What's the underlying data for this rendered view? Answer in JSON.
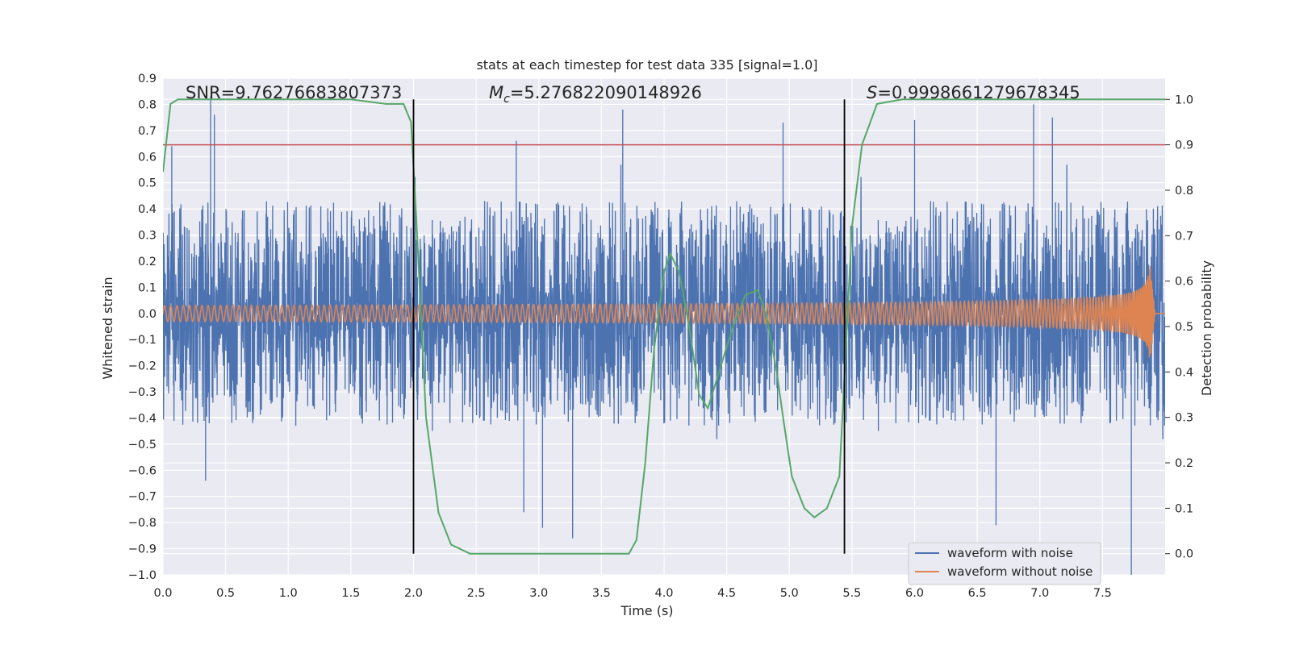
{
  "chart_data": {
    "type": "line",
    "title": "stats at each timestep for test data 335 [signal=1.0]",
    "xlabel": "Time (s)",
    "ylabel": "Whitened strain",
    "y2label": "Detection probability",
    "xlim": [
      0.0,
      8.0
    ],
    "ylim": [
      -1.0,
      0.9
    ],
    "y2lim": [
      -0.0466,
      1.0466
    ],
    "xticks": [
      0.0,
      0.5,
      1.0,
      1.5,
      2.0,
      2.5,
      3.0,
      3.5,
      4.0,
      4.5,
      5.0,
      5.5,
      6.0,
      6.5,
      7.0,
      7.5
    ],
    "xtick_labels": [
      "0.0",
      "0.5",
      "1.0",
      "1.5",
      "2.0",
      "2.5",
      "3.0",
      "3.5",
      "4.0",
      "4.5",
      "5.0",
      "5.5",
      "6.0",
      "6.5",
      "7.0",
      "7.5"
    ],
    "yticks": [
      0.9,
      0.8,
      0.7,
      0.6,
      0.5,
      0.4,
      0.3,
      0.2,
      0.1,
      0.0,
      -0.1,
      -0.2,
      -0.3,
      -0.4,
      -0.5,
      -0.6,
      -0.7,
      -0.8,
      -0.9,
      -1.0
    ],
    "ytick_labels": [
      "0.9",
      "0.8",
      "0.7",
      "0.6",
      "0.5",
      "0.4",
      "0.3",
      "0.2",
      "0.1",
      "0.0",
      "−0.1",
      "−0.2",
      "−0.3",
      "−0.4",
      "−0.5",
      "−0.6",
      "−0.7",
      "−0.8",
      "−0.9",
      "−1.0"
    ],
    "y2ticks": [
      1.0,
      0.9,
      0.8,
      0.7,
      0.6,
      0.5,
      0.4,
      0.3,
      0.2,
      0.1,
      0.0
    ],
    "y2tick_labels": [
      "1.0",
      "0.9",
      "0.8",
      "0.7",
      "0.6",
      "0.5",
      "0.4",
      "0.3",
      "0.2",
      "0.1",
      "0.0"
    ],
    "grid": true,
    "legend_position": "lower-right",
    "series": [
      {
        "name": "waveform with noise",
        "color": "#4c72b0",
        "kind": "noisy strain",
        "envelope_positive_typical": 0.4,
        "envelope_negative_typical": -0.45,
        "peaks": [
          {
            "x": 0.38,
            "y": 0.83
          },
          {
            "x": 0.41,
            "y": 0.76
          },
          {
            "x": 0.07,
            "y": 0.64
          },
          {
            "x": 2.82,
            "y": 0.66
          },
          {
            "x": 3.67,
            "y": 0.78
          },
          {
            "x": 4.95,
            "y": 0.73
          },
          {
            "x": 6.0,
            "y": 0.74
          },
          {
            "x": 6.95,
            "y": 0.8
          },
          {
            "x": 7.1,
            "y": 0.75
          },
          {
            "x": 7.73,
            "y": -1.0
          },
          {
            "x": 3.03,
            "y": -0.82
          },
          {
            "x": 3.27,
            "y": -0.86
          },
          {
            "x": 6.65,
            "y": -0.81
          },
          {
            "x": 2.88,
            "y": -0.76
          },
          {
            "x": 0.34,
            "y": -0.64
          }
        ]
      },
      {
        "name": "waveform without noise",
        "color": "#dd8452",
        "kind": "chirp",
        "amplitude_start": 0.03,
        "amplitude_peak": 0.19,
        "merger_time": 7.88,
        "ringdown_end": 7.92
      },
      {
        "name": "detection probability",
        "color": "#55a868",
        "axis": "right",
        "x": [
          0.0,
          0.06,
          0.12,
          0.3,
          1.5,
          1.78,
          1.92,
          1.98,
          2.02,
          2.1,
          2.2,
          2.3,
          2.45,
          3.0,
          3.5,
          3.65,
          3.72,
          3.78,
          3.85,
          3.92,
          4.0,
          4.05,
          4.12,
          4.2,
          4.28,
          4.35,
          4.45,
          4.55,
          4.65,
          4.75,
          4.82,
          4.9,
          4.95,
          5.02,
          5.12,
          5.2,
          5.3,
          5.4,
          5.5,
          5.58,
          5.7,
          5.9,
          6.5,
          7.2,
          8.0
        ],
        "y": [
          0.84,
          0.99,
          1.0,
          1.0,
          1.0,
          0.99,
          0.99,
          0.95,
          0.75,
          0.3,
          0.09,
          0.02,
          0.0,
          0.0,
          0.0,
          0.0,
          0.0,
          0.03,
          0.2,
          0.45,
          0.62,
          0.66,
          0.62,
          0.5,
          0.35,
          0.32,
          0.41,
          0.5,
          0.57,
          0.58,
          0.52,
          0.4,
          0.3,
          0.17,
          0.1,
          0.08,
          0.1,
          0.17,
          0.72,
          0.9,
          0.99,
          1.0,
          1.0,
          1.0,
          1.0
        ]
      }
    ],
    "threshold_line": {
      "y2": 0.9,
      "color": "#c44e52"
    },
    "vertical_lines": [
      2.0,
      5.44
    ],
    "annotations": [
      {
        "text": "SNR=9.76276683807373",
        "x": 0.2
      },
      {
        "text": "M",
        "sub": "c",
        "value": "=5.276822090148926",
        "x": 2.6
      },
      {
        "text": "S",
        "value": "=0.9998661279678345",
        "x": 5.6
      }
    ]
  }
}
